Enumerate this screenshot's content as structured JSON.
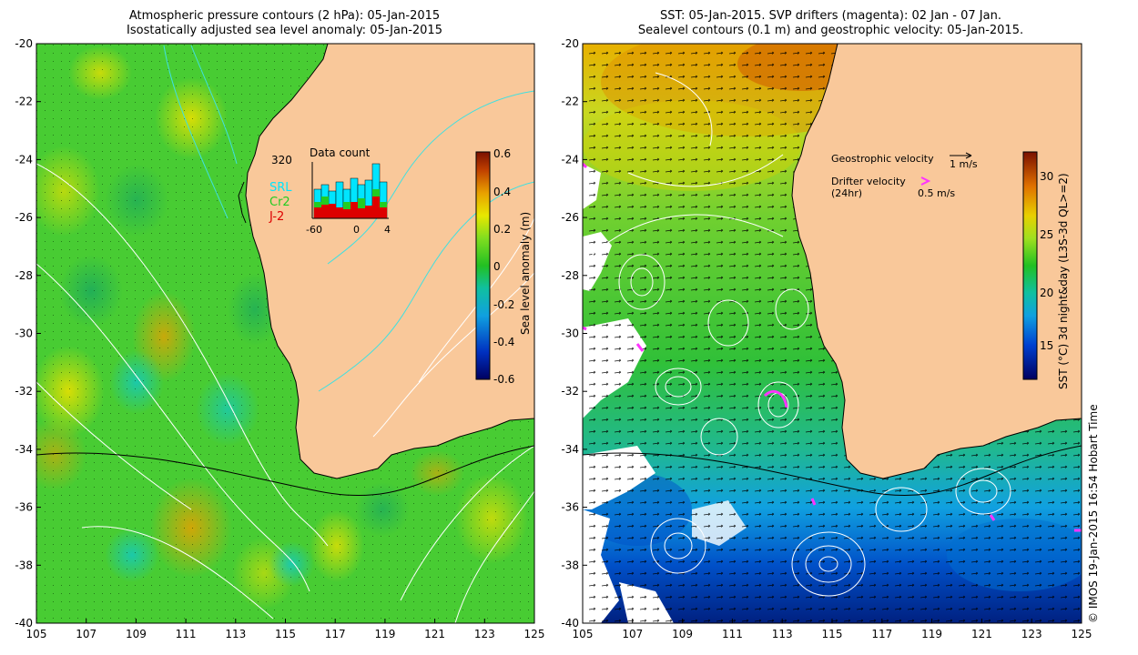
{
  "left_panel": {
    "title_line1": "Atmospheric pressure contours (2 hPa): 05-Jan-2015",
    "title_line2": "Isostatically adjusted sea level anomaly: 05-Jan-2015",
    "colorbar": {
      "label": "Sea level anomaly (m)",
      "ticks": [
        "0.6",
        "0.4",
        "0.2",
        "0",
        "-0.2",
        "-0.4",
        "-0.6"
      ],
      "colors": [
        "#8b1a00",
        "#d2691e",
        "#e8c000",
        "#b5e61d",
        "#21c021",
        "#1ab0a0",
        "#1090ff",
        "#0020a0",
        "#000060"
      ]
    },
    "inset": {
      "title": "Data count",
      "max_label": "320",
      "x_ticks": [
        "-60",
        "0",
        "4"
      ],
      "series": [
        {
          "name": "SRL",
          "color": "#00e5ff"
        },
        {
          "name": "Cr2",
          "color": "#22cc22"
        },
        {
          "name": "J-2",
          "color": "#dd0000"
        }
      ]
    }
  },
  "right_panel": {
    "title_line1": "SST: 05-Jan-2015. SVP drifters (magenta): 02 Jan - 07 Jan.",
    "title_line2": "Sealevel contours (0.1 m) and geostrophic velocity: 05-Jan-2015.",
    "legend": {
      "geostrophic_label": "Geostrophic velocity",
      "geostrophic_scale": "1 m/s",
      "drifter_label": "Drifter velocity",
      "drifter_sub": "(24hr)",
      "drifter_scale": "0.5 m/s"
    },
    "colorbar": {
      "label": "SST (°C) 3d night&day (L3S-3d QL>=2)",
      "ticks": [
        "30",
        "25",
        "20",
        "15"
      ],
      "colors": [
        "#8b1a00",
        "#e06000",
        "#e8c000",
        "#b5e61d",
        "#21c021",
        "#10c0c0",
        "#1090ff",
        "#0020a0",
        "#000060"
      ]
    }
  },
  "axes": {
    "y_ticks": [
      "-20",
      "-22",
      "-24",
      "-26",
      "-28",
      "-30",
      "-32",
      "-34",
      "-36",
      "-38",
      "-40"
    ],
    "x_ticks": [
      "105",
      "107",
      "109",
      "111",
      "113",
      "115",
      "117",
      "119",
      "121",
      "123",
      "125"
    ]
  },
  "credit": "© IMOS 19-Jan-2015 16:54 Hobart Time",
  "colors": {
    "land": "#f9c89a",
    "coast": "#000000"
  }
}
